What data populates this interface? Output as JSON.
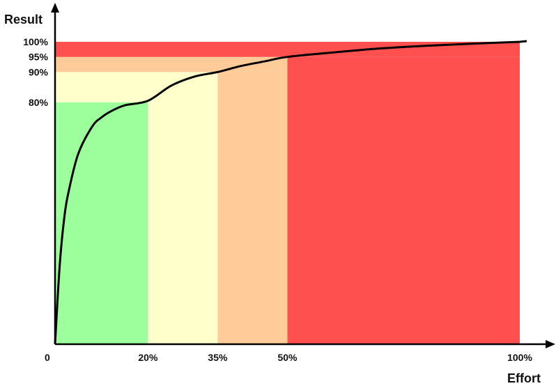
{
  "chart_data": {
    "type": "area",
    "xlabel": "Effort",
    "ylabel": "Result",
    "xlim": [
      0,
      100
    ],
    "ylim": [
      0,
      100
    ],
    "x_ticks": [
      {
        "value": 0,
        "label": "0"
      },
      {
        "value": 20,
        "label": "20%"
      },
      {
        "value": 35,
        "label": "35%"
      },
      {
        "value": 50,
        "label": "50%"
      },
      {
        "value": 100,
        "label": "100%"
      }
    ],
    "y_ticks": [
      {
        "value": 80,
        "label": "80%"
      },
      {
        "value": 90,
        "label": "90%"
      },
      {
        "value": 95,
        "label": "95%"
      },
      {
        "value": 100,
        "label": "100%"
      }
    ],
    "regions": [
      {
        "x": [
          0,
          20
        ],
        "y": [
          0,
          80
        ],
        "color": "#9cff9c"
      },
      {
        "x": [
          0,
          35
        ],
        "y": [
          80,
          90
        ],
        "color": "#ffffcc"
      },
      {
        "x": [
          20,
          35
        ],
        "y": [
          0,
          80
        ],
        "color": "#ffffcc"
      },
      {
        "x": [
          0,
          50
        ],
        "y": [
          90,
          95
        ],
        "color": "#ffcc99"
      },
      {
        "x": [
          35,
          50
        ],
        "y": [
          0,
          90
        ],
        "color": "#ffcc99"
      },
      {
        "x": [
          0,
          100
        ],
        "y": [
          95,
          100
        ],
        "color": "#ff5050"
      },
      {
        "x": [
          50,
          100
        ],
        "y": [
          0,
          95
        ],
        "color": "#ff5050"
      }
    ],
    "curve": {
      "x": [
        0,
        1,
        2,
        3,
        5,
        8,
        10,
        12,
        15,
        20,
        25,
        30,
        35,
        40,
        45,
        50,
        60,
        70,
        80,
        90,
        100
      ],
      "y": [
        0,
        26,
        42,
        51,
        63,
        72,
        75,
        77,
        79,
        80.5,
        85.5,
        88.5,
        90,
        92,
        93.5,
        95,
        96.5,
        97.8,
        98.7,
        99.4,
        100
      ],
      "color": "#000000"
    },
    "grid": false,
    "legend": "none"
  }
}
